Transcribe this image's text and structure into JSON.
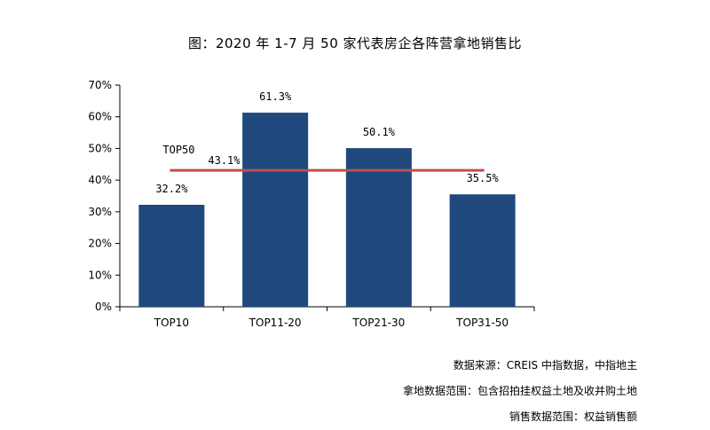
{
  "chart_data": {
    "type": "bar",
    "title": "图：2020 年 1-7 月 50 家代表房企各阵营拿地销售比",
    "categories": [
      "TOP10",
      "TOP11-20",
      "TOP21-30",
      "TOP31-50"
    ],
    "values": [
      32.2,
      61.3,
      50.1,
      35.5
    ],
    "value_labels": [
      "32.2%",
      "61.3%",
      "50.1%",
      "35.5%"
    ],
    "ylim": [
      0,
      70
    ],
    "yticks": [
      0,
      10,
      20,
      30,
      40,
      50,
      60,
      70
    ],
    "ytick_labels": [
      "0%",
      "10%",
      "20%",
      "30%",
      "40%",
      "50%",
      "60%",
      "70%"
    ],
    "xlabel": "",
    "ylabel": "",
    "grid": false,
    "bar_color": "#1f497d",
    "reference_line": {
      "name": "TOP50",
      "value": 43.1,
      "label": "43.1%",
      "color": "#c0504d"
    }
  },
  "notes": [
    "数据来源：CREIS 中指数据，中指地主",
    "拿地数据范围：包含招拍挂权益土地及收并购土地",
    "销售数据范围：权益销售额"
  ]
}
